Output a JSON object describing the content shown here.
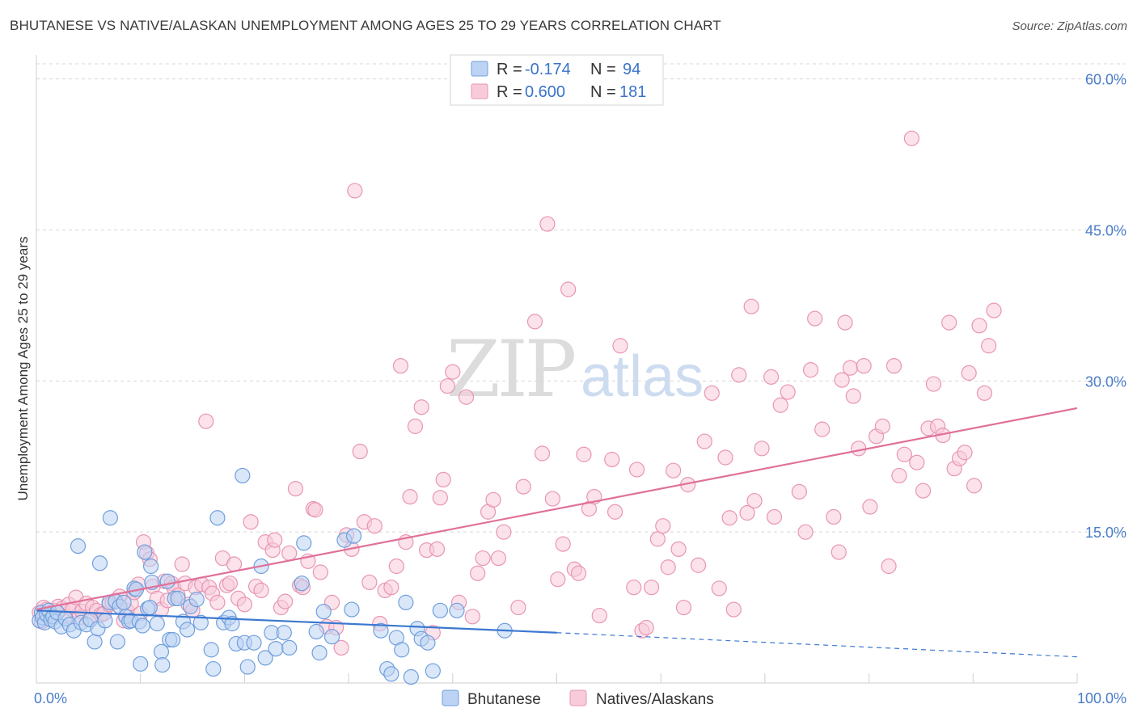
{
  "title": "BHUTANESE VS NATIVE/ALASKAN UNEMPLOYMENT AMONG AGES 25 TO 29 YEARS CORRELATION CHART",
  "source": "Source: ZipAtlas.com",
  "watermark": {
    "zip": "ZIP",
    "atlas": "atlas"
  },
  "legend_box": {
    "rows": [
      {
        "r_label": "R =",
        "r_value": "-0.174",
        "n_label": "N =",
        "n_value": "94"
      },
      {
        "r_label": "R =",
        "r_value": "0.600",
        "n_label": "N =",
        "n_value": "181"
      }
    ]
  },
  "colors": {
    "bhutanese_fill": "#bcd3f3",
    "bhutanese_stroke": "#6f9fdd",
    "bhutanese_line": "#3b78d0",
    "native_fill": "#f8cbdb",
    "native_stroke": "#e896b2",
    "native_line": "#e0709a",
    "tick": "#4a7cc9",
    "grid": "#d8d8d8"
  },
  "chart_data": {
    "type": "scatter",
    "title": "BHUTANESE VS NATIVE/ALASKAN UNEMPLOYMENT AMONG AGES 25 TO 29 YEARS CORRELATION CHART",
    "xlabel": "",
    "ylabel": "Unemployment Among Ages 25 to 29 years",
    "x_tick_labels": [
      "0.0%",
      "100.0%"
    ],
    "y_tick_labels": [
      "15.0%",
      "30.0%",
      "45.0%",
      "60.0%"
    ],
    "y_ticks": [
      15,
      30,
      45,
      60
    ],
    "xlim": [
      0,
      100
    ],
    "ylim": [
      0,
      61.5
    ],
    "grid": true,
    "legend_position": "bottom",
    "series": [
      {
        "name": "Bhutanese",
        "R": -0.174,
        "N": 94,
        "trend": {
          "x0": 0,
          "y0": 7.2,
          "x1": 50,
          "y1": 5.0,
          "dashed_to_x": 100,
          "dashed_to_y": 2.6
        },
        "points": [
          [
            0.3,
            6.2
          ],
          [
            0.5,
            7.0
          ],
          [
            0.6,
            6.5
          ],
          [
            0.8,
            6.0
          ],
          [
            1.0,
            6.8
          ],
          [
            1.2,
            7.2
          ],
          [
            1.4,
            6.3
          ],
          [
            1.6,
            6.6
          ],
          [
            1.8,
            6.1
          ],
          [
            2.0,
            7.0
          ],
          [
            2.4,
            5.6
          ],
          [
            2.8,
            6.4
          ],
          [
            3.2,
            5.8
          ],
          [
            3.6,
            5.2
          ],
          [
            4.0,
            13.6
          ],
          [
            4.3,
            6.0
          ],
          [
            4.8,
            5.8
          ],
          [
            5.2,
            6.3
          ],
          [
            5.6,
            4.1
          ],
          [
            5.9,
            5.4
          ],
          [
            6.1,
            11.9
          ],
          [
            6.6,
            6.2
          ],
          [
            7.0,
            8.0
          ],
          [
            7.1,
            16.4
          ],
          [
            7.6,
            8.1
          ],
          [
            7.8,
            4.1
          ],
          [
            8.0,
            7.6
          ],
          [
            8.4,
            8.0
          ],
          [
            8.6,
            6.6
          ],
          [
            8.9,
            6.1
          ],
          [
            9.1,
            6.2
          ],
          [
            9.4,
            9.4
          ],
          [
            9.6,
            9.3
          ],
          [
            9.9,
            6.1
          ],
          [
            10.0,
            1.9
          ],
          [
            10.2,
            5.7
          ],
          [
            10.4,
            13.0
          ],
          [
            10.7,
            7.4
          ],
          [
            10.9,
            7.5
          ],
          [
            11.0,
            11.6
          ],
          [
            11.1,
            10.0
          ],
          [
            11.6,
            5.9
          ],
          [
            12.0,
            3.1
          ],
          [
            12.1,
            1.8
          ],
          [
            12.6,
            10.1
          ],
          [
            12.8,
            4.3
          ],
          [
            13.1,
            4.3
          ],
          [
            13.3,
            8.4
          ],
          [
            13.6,
            8.4
          ],
          [
            14.1,
            6.1
          ],
          [
            14.5,
            5.3
          ],
          [
            14.8,
            7.6
          ],
          [
            15.4,
            8.3
          ],
          [
            15.8,
            6.0
          ],
          [
            16.8,
            3.3
          ],
          [
            17.0,
            1.4
          ],
          [
            17.4,
            16.4
          ],
          [
            18.0,
            6.0
          ],
          [
            18.5,
            6.5
          ],
          [
            18.8,
            5.9
          ],
          [
            19.2,
            3.9
          ],
          [
            19.8,
            20.6
          ],
          [
            20.0,
            4.0
          ],
          [
            20.3,
            1.6
          ],
          [
            20.9,
            4.0
          ],
          [
            21.6,
            11.6
          ],
          [
            22.0,
            2.5
          ],
          [
            22.6,
            5.0
          ],
          [
            23.0,
            3.4
          ],
          [
            23.8,
            5.0
          ],
          [
            24.3,
            3.5
          ],
          [
            25.5,
            9.9
          ],
          [
            25.7,
            13.9
          ],
          [
            26.9,
            5.1
          ],
          [
            27.2,
            3.0
          ],
          [
            27.6,
            7.1
          ],
          [
            28.4,
            4.6
          ],
          [
            29.6,
            14.2
          ],
          [
            30.3,
            7.3
          ],
          [
            30.5,
            14.6
          ],
          [
            33.1,
            5.2
          ],
          [
            33.7,
            1.4
          ],
          [
            34.1,
            0.9
          ],
          [
            34.6,
            4.5
          ],
          [
            35.1,
            3.3
          ],
          [
            35.5,
            8.0
          ],
          [
            36.0,
            0.6
          ],
          [
            36.6,
            5.4
          ],
          [
            37.0,
            4.4
          ],
          [
            37.6,
            4.0
          ],
          [
            38.1,
            1.2
          ],
          [
            38.8,
            7.2
          ],
          [
            40.4,
            7.2
          ],
          [
            45.0,
            5.2
          ]
        ]
      },
      {
        "name": "Natives/Alaskans",
        "R": 0.6,
        "N": 181,
        "trend": {
          "x0": 0,
          "y0": 7.3,
          "x1": 100,
          "y1": 27.3
        },
        "points": [
          [
            0.3,
            7.0
          ],
          [
            0.5,
            6.1
          ],
          [
            0.7,
            7.5
          ],
          [
            1.0,
            7.3
          ],
          [
            1.3,
            6.8
          ],
          [
            1.7,
            7.2
          ],
          [
            2.1,
            7.6
          ],
          [
            2.5,
            7.4
          ],
          [
            2.8,
            6.6
          ],
          [
            3.1,
            7.8
          ],
          [
            3.5,
            7.3
          ],
          [
            3.8,
            8.5
          ],
          [
            4.1,
            6.5
          ],
          [
            4.4,
            7.1
          ],
          [
            4.8,
            7.9
          ],
          [
            5.1,
            6.3
          ],
          [
            5.4,
            7.5
          ],
          [
            5.8,
            7.2
          ],
          [
            6.2,
            6.8
          ],
          [
            6.5,
            6.9
          ],
          [
            7.0,
            7.8
          ],
          [
            7.3,
            8.0
          ],
          [
            7.6,
            8.2
          ],
          [
            8.0,
            8.6
          ],
          [
            8.4,
            6.2
          ],
          [
            8.7,
            7.2
          ],
          [
            9.1,
            7.9
          ],
          [
            9.4,
            9.0
          ],
          [
            9.8,
            9.8
          ],
          [
            10.0,
            6.9
          ],
          [
            10.3,
            14.0
          ],
          [
            10.6,
            12.9
          ],
          [
            10.9,
            12.3
          ],
          [
            11.2,
            9.6
          ],
          [
            11.6,
            8.4
          ],
          [
            12.0,
            7.3
          ],
          [
            12.3,
            10.1
          ],
          [
            12.6,
            8.2
          ],
          [
            13.0,
            9.9
          ],
          [
            13.2,
            9.5
          ],
          [
            13.6,
            8.7
          ],
          [
            14.0,
            11.8
          ],
          [
            14.3,
            9.9
          ],
          [
            14.6,
            7.8
          ],
          [
            15.0,
            7.2
          ],
          [
            15.3,
            9.5
          ],
          [
            15.9,
            9.8
          ],
          [
            16.3,
            26.0
          ],
          [
            16.6,
            9.5
          ],
          [
            16.9,
            8.9
          ],
          [
            17.4,
            8.0
          ],
          [
            17.9,
            12.4
          ],
          [
            18.3,
            9.7
          ],
          [
            18.6,
            9.9
          ],
          [
            19.0,
            11.8
          ],
          [
            19.4,
            8.4
          ],
          [
            20.0,
            7.8
          ],
          [
            20.6,
            16.0
          ],
          [
            21.1,
            9.6
          ],
          [
            21.6,
            9.2
          ],
          [
            22.0,
            14.0
          ],
          [
            22.7,
            13.2
          ],
          [
            22.9,
            14.2
          ],
          [
            23.5,
            7.5
          ],
          [
            23.9,
            8.1
          ],
          [
            24.3,
            12.9
          ],
          [
            24.9,
            19.3
          ],
          [
            25.3,
            9.7
          ],
          [
            25.6,
            9.5
          ],
          [
            26.1,
            12.1
          ],
          [
            26.6,
            17.3
          ],
          [
            26.8,
            17.2
          ],
          [
            27.3,
            11.0
          ],
          [
            27.9,
            5.6
          ],
          [
            28.4,
            8.0
          ],
          [
            28.8,
            5.5
          ],
          [
            29.3,
            3.5
          ],
          [
            29.8,
            14.7
          ],
          [
            30.3,
            13.3
          ],
          [
            30.6,
            48.9
          ],
          [
            31.1,
            23.0
          ],
          [
            31.5,
            16.0
          ],
          [
            32.0,
            10.0
          ],
          [
            32.5,
            15.6
          ],
          [
            33.0,
            5.9
          ],
          [
            33.5,
            9.2
          ],
          [
            34.1,
            9.5
          ],
          [
            34.6,
            11.6
          ],
          [
            35.0,
            31.5
          ],
          [
            35.5,
            14.0
          ],
          [
            35.9,
            18.5
          ],
          [
            36.4,
            25.5
          ],
          [
            37.0,
            27.4
          ],
          [
            37.5,
            13.2
          ],
          [
            38.1,
            5.0
          ],
          [
            38.5,
            13.3
          ],
          [
            38.8,
            18.4
          ],
          [
            39.1,
            20.2
          ],
          [
            39.5,
            29.5
          ],
          [
            40.0,
            30.9
          ],
          [
            40.6,
            8.0
          ],
          [
            41.3,
            28.4
          ],
          [
            41.9,
            6.6
          ],
          [
            42.4,
            10.9
          ],
          [
            42.9,
            12.4
          ],
          [
            43.4,
            17.0
          ],
          [
            43.9,
            18.2
          ],
          [
            44.4,
            12.4
          ],
          [
            44.9,
            15.0
          ],
          [
            46.3,
            7.5
          ],
          [
            46.8,
            19.5
          ],
          [
            47.9,
            35.9
          ],
          [
            48.6,
            22.8
          ],
          [
            49.1,
            45.6
          ],
          [
            49.6,
            18.3
          ],
          [
            50.1,
            10.3
          ],
          [
            50.6,
            13.8
          ],
          [
            51.1,
            39.1
          ],
          [
            51.7,
            11.3
          ],
          [
            52.1,
            10.9
          ],
          [
            52.6,
            22.7
          ],
          [
            53.1,
            17.3
          ],
          [
            53.6,
            18.5
          ],
          [
            54.1,
            6.7
          ],
          [
            55.3,
            22.2
          ],
          [
            55.6,
            17.0
          ],
          [
            56.1,
            33.5
          ],
          [
            57.4,
            9.5
          ],
          [
            57.7,
            21.2
          ],
          [
            58.2,
            5.2
          ],
          [
            58.6,
            5.5
          ],
          [
            59.1,
            9.5
          ],
          [
            59.7,
            14.3
          ],
          [
            60.2,
            15.6
          ],
          [
            60.7,
            11.5
          ],
          [
            61.2,
            21.1
          ],
          [
            61.7,
            13.3
          ],
          [
            62.2,
            7.5
          ],
          [
            62.6,
            19.7
          ],
          [
            63.6,
            11.7
          ],
          [
            64.2,
            24.0
          ],
          [
            64.9,
            28.8
          ],
          [
            65.6,
            9.4
          ],
          [
            66.2,
            22.4
          ],
          [
            66.6,
            16.4
          ],
          [
            67.0,
            7.3
          ],
          [
            67.5,
            30.6
          ],
          [
            68.3,
            16.9
          ],
          [
            68.7,
            37.4
          ],
          [
            69.0,
            18.1
          ],
          [
            69.7,
            23.3
          ],
          [
            70.6,
            30.4
          ],
          [
            70.9,
            16.5
          ],
          [
            71.5,
            27.6
          ],
          [
            72.2,
            28.9
          ],
          [
            73.3,
            19.0
          ],
          [
            73.9,
            15.0
          ],
          [
            74.4,
            31.1
          ],
          [
            74.8,
            36.2
          ],
          [
            75.5,
            25.2
          ],
          [
            76.6,
            16.5
          ],
          [
            77.1,
            13.0
          ],
          [
            77.4,
            30.1
          ],
          [
            77.7,
            35.8
          ],
          [
            78.2,
            31.3
          ],
          [
            78.5,
            28.5
          ],
          [
            79.0,
            23.3
          ],
          [
            79.5,
            31.5
          ],
          [
            80.1,
            17.5
          ],
          [
            80.7,
            24.5
          ],
          [
            81.3,
            25.5
          ],
          [
            81.9,
            11.6
          ],
          [
            82.4,
            31.5
          ],
          [
            82.9,
            20.6
          ],
          [
            83.4,
            22.7
          ],
          [
            84.1,
            54.1
          ],
          [
            84.6,
            21.9
          ],
          [
            85.2,
            19.1
          ],
          [
            85.7,
            25.3
          ],
          [
            86.2,
            29.7
          ],
          [
            86.6,
            25.5
          ],
          [
            87.1,
            24.6
          ],
          [
            87.7,
            35.8
          ],
          [
            88.2,
            21.3
          ],
          [
            88.7,
            22.3
          ],
          [
            89.2,
            22.9
          ],
          [
            89.6,
            30.8
          ],
          [
            90.1,
            19.6
          ],
          [
            90.6,
            35.5
          ],
          [
            91.1,
            28.8
          ],
          [
            91.5,
            33.5
          ],
          [
            92.0,
            37.0
          ]
        ]
      }
    ]
  },
  "bottom_legend": [
    {
      "label": "Bhutanese"
    },
    {
      "label": "Natives/Alaskans"
    }
  ]
}
